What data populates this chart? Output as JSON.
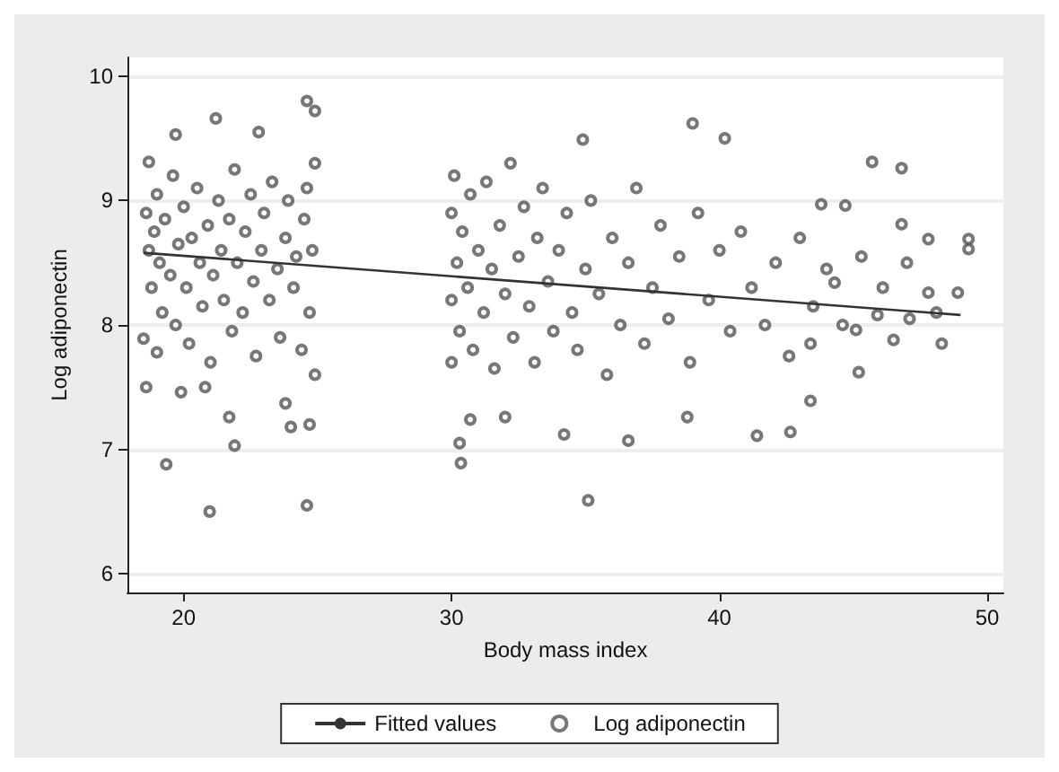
{
  "chart_data": {
    "type": "scatter",
    "xlabel": "Body mass index",
    "ylabel": "Log adiponectin",
    "xlim": [
      17.9,
      50.6
    ],
    "ylim": [
      5.85,
      10.15
    ],
    "xticks": [
      20,
      30,
      40,
      50
    ],
    "yticks": [
      6,
      7,
      8,
      9,
      10
    ],
    "grid": "y",
    "legend": "bottom",
    "series": [
      {
        "name": "Fitted values",
        "type": "line",
        "color": "#333333",
        "marker": "none",
        "line_style": "solid",
        "x": [
          18.5,
          49
        ],
        "values": [
          8.58,
          8.08
        ]
      },
      {
        "name": "Log adiponectin",
        "color": "#555555",
        "marker": "circle",
        "x": [
          18.6,
          18.7,
          18.8,
          18.9,
          19.0,
          19.1,
          19.2,
          19.3,
          19.5,
          19.6,
          19.7,
          19.8,
          20.0,
          20.1,
          20.2,
          20.3,
          20.5,
          20.6,
          20.7,
          20.9,
          21.0,
          21.1,
          21.3,
          21.4,
          21.5,
          21.7,
          21.8,
          21.9,
          22.0,
          22.2,
          22.3,
          22.5,
          22.6,
          22.7,
          22.9,
          23.0,
          23.2,
          23.3,
          23.5,
          23.6,
          23.8,
          23.9,
          24.1,
          24.2,
          24.4,
          24.5,
          24.6,
          24.7,
          24.8,
          24.9,
          24.9,
          19.35,
          20.97,
          24.6,
          21.9,
          24.6,
          24.9,
          21.2,
          19.7,
          22.8,
          18.7,
          18.6,
          19.9,
          20.8,
          21.7,
          24.0,
          24.7,
          23.8,
          18.5,
          19.0,
          30.0,
          30.0,
          30.0,
          30.1,
          30.2,
          30.3,
          30.4,
          30.6,
          30.7,
          30.8,
          31.0,
          31.2,
          31.3,
          31.5,
          31.6,
          31.8,
          32.0,
          32.2,
          32.3,
          32.5,
          32.7,
          32.9,
          33.1,
          33.2,
          33.4,
          33.6,
          33.8,
          34.0,
          34.3,
          34.5,
          34.7,
          35.0,
          35.2,
          35.5,
          35.8,
          36.0,
          36.3,
          36.6,
          36.9,
          37.2,
          37.5,
          37.8,
          38.1,
          38.5,
          38.9,
          39.2,
          39.6,
          40.0,
          40.4,
          40.8,
          41.2,
          41.7,
          42.1,
          42.6,
          43.0,
          43.5,
          44.0,
          44.6,
          45.3,
          46.1,
          47.0,
          48.1,
          30.35,
          30.3,
          30.7,
          32.0,
          34.2,
          35.1,
          36.6,
          38.8,
          41.4,
          42.65,
          43.4,
          45.2,
          48.3,
          46.5,
          39.0,
          40.2,
          34.9,
          45.7,
          46.8,
          49.3,
          49.3,
          47.8,
          46.8,
          44.7,
          43.8,
          48.9,
          47.8,
          47.1,
          45.9,
          44.3,
          45.1,
          43.4
        ],
        "values": [
          8.9,
          8.6,
          8.3,
          8.75,
          9.05,
          8.5,
          8.1,
          8.85,
          8.4,
          9.2,
          8.0,
          8.65,
          8.95,
          8.3,
          7.85,
          8.7,
          9.1,
          8.5,
          8.15,
          8.8,
          7.7,
          8.4,
          9.0,
          8.6,
          8.2,
          8.85,
          7.95,
          9.25,
          8.5,
          8.1,
          8.75,
          9.05,
          8.35,
          7.75,
          8.6,
          8.9,
          8.2,
          9.15,
          8.45,
          7.9,
          8.7,
          9.0,
          8.3,
          8.55,
          7.8,
          8.85,
          9.1,
          8.1,
          8.6,
          9.3,
          7.6,
          6.88,
          6.5,
          6.55,
          7.03,
          9.8,
          9.72,
          9.66,
          9.53,
          9.55,
          9.31,
          7.5,
          7.46,
          7.5,
          7.26,
          7.18,
          7.2,
          7.37,
          7.89,
          7.78,
          8.9,
          8.2,
          7.7,
          9.2,
          8.5,
          7.95,
          8.75,
          8.3,
          9.05,
          7.8,
          8.6,
          8.1,
          9.15,
          8.45,
          7.65,
          8.8,
          8.25,
          9.3,
          7.9,
          8.55,
          8.95,
          8.15,
          7.7,
          8.7,
          9.1,
          8.35,
          7.95,
          8.6,
          8.9,
          8.1,
          7.8,
          8.45,
          9.0,
          8.25,
          7.6,
          8.7,
          8.0,
          8.5,
          9.1,
          7.85,
          8.3,
          8.8,
          8.05,
          8.55,
          7.7,
          8.9,
          8.2,
          8.6,
          7.95,
          8.75,
          8.3,
          8.0,
          8.5,
          7.75,
          8.7,
          8.15,
          8.45,
          8.0,
          8.55,
          8.3,
          8.5,
          8.1,
          6.89,
          7.05,
          7.24,
          7.26,
          7.12,
          6.59,
          7.07,
          7.26,
          7.11,
          7.14,
          7.39,
          7.62,
          7.85,
          7.88,
          9.62,
          9.5,
          9.49,
          9.31,
          9.26,
          8.69,
          8.61,
          8.69,
          8.81,
          8.96,
          8.97,
          8.26,
          8.26,
          8.05,
          8.08,
          8.34,
          7.96,
          7.85
        ]
      }
    ]
  }
}
